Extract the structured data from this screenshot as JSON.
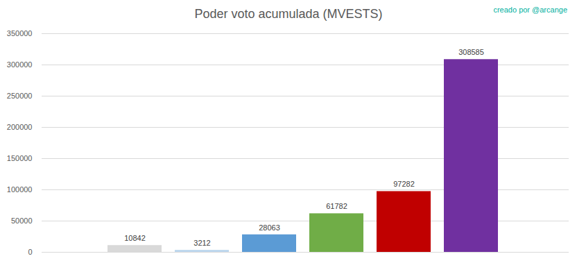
{
  "chart_data": {
    "type": "bar",
    "title": "Poder voto acumulada (MVESTS)",
    "annotations": [
      "creado por @arcange"
    ],
    "categories": [
      null,
      null,
      null,
      null,
      null,
      null
    ],
    "values": [
      10842,
      3212,
      28063,
      61782,
      97282,
      308585
    ],
    "colors": [
      "#d9d9d9",
      "#bdd7ee",
      "#5b9bd5",
      "#70ad47",
      "#c00000",
      "#7030a0"
    ],
    "ylim": [
      0,
      350000
    ],
    "yticks": [
      0,
      50000,
      100000,
      150000,
      200000,
      250000,
      300000,
      350000
    ],
    "grid": true,
    "data_labels": true,
    "tick_labels": "y"
  }
}
